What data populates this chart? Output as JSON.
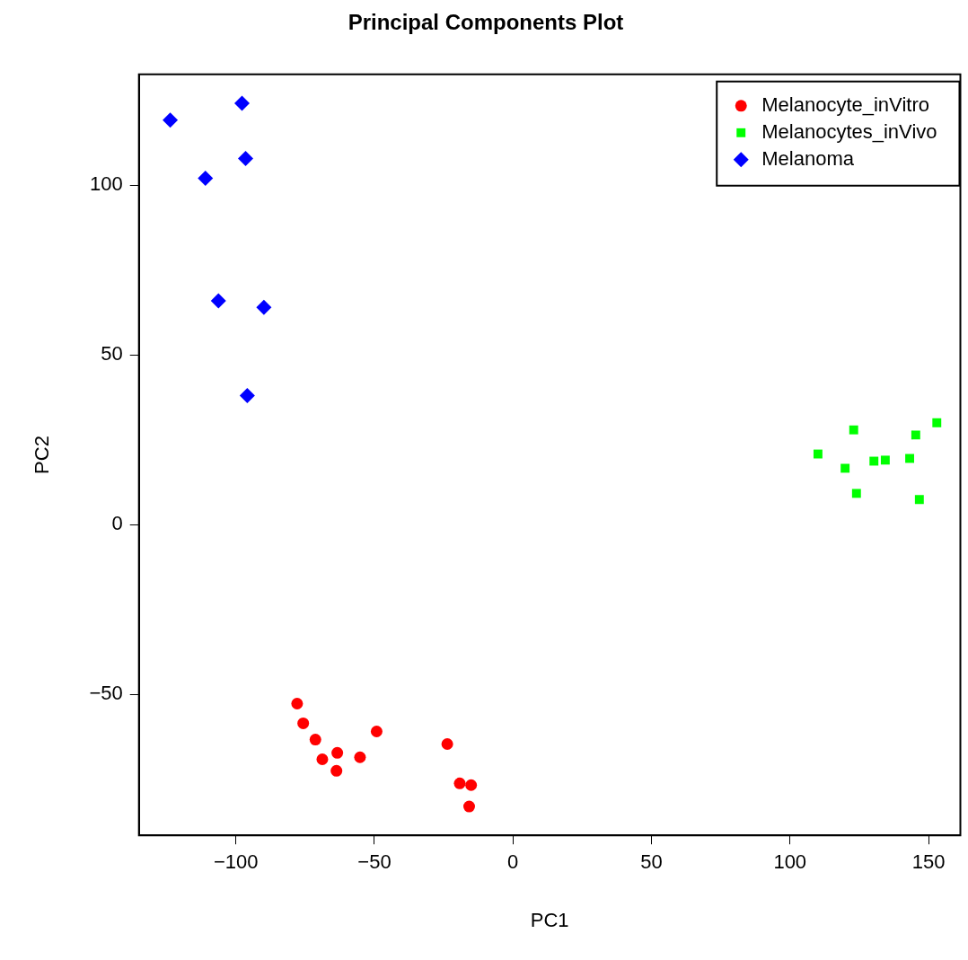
{
  "chart_data": {
    "type": "scatter",
    "title": "Principal Components Plot",
    "xlabel": "PC1",
    "ylabel": "PC2",
    "xlim": [
      -135,
      161.5
    ],
    "ylim": [
      -91.5,
      132.6
    ],
    "xticks": [
      -100,
      -50,
      0,
      50,
      100,
      150
    ],
    "yticks": [
      -50,
      0,
      50,
      100
    ],
    "grid": false,
    "legend": "top right",
    "series": [
      {
        "name": "Melanocyte_inVitro",
        "color": "#ff0000",
        "marker": "circle",
        "x": [
          -77.9,
          -75.7,
          -71.3,
          -68.8,
          -63.4,
          -63.7,
          -55.2,
          -49.2,
          -23.7,
          -19.2,
          -15.1,
          -15.8
        ],
        "values": [
          -52.7,
          -58.5,
          -63.3,
          -69.1,
          -67.2,
          -72.5,
          -68.5,
          -60.9,
          -64.6,
          -76.2,
          -76.7,
          -83.0
        ]
      },
      {
        "name": "Melanocytes_inVivo",
        "color": "#00ff00",
        "marker": "square",
        "x": [
          110.1,
          119.9,
          123.0,
          124.0,
          130.3,
          134.4,
          143.2,
          145.4,
          146.7,
          153.0
        ],
        "values": [
          20.8,
          16.6,
          27.9,
          9.2,
          18.7,
          19.0,
          19.5,
          26.4,
          7.4,
          30.0
        ]
      },
      {
        "name": "Melanoma",
        "color": "#0000ff",
        "marker": "diamond",
        "x": [
          -123.7,
          -97.8,
          -111.0,
          -96.5,
          -106.3,
          -89.9,
          -95.9
        ],
        "values": [
          119.1,
          124.1,
          102.0,
          107.8,
          65.9,
          64.0,
          38.0
        ]
      }
    ]
  }
}
